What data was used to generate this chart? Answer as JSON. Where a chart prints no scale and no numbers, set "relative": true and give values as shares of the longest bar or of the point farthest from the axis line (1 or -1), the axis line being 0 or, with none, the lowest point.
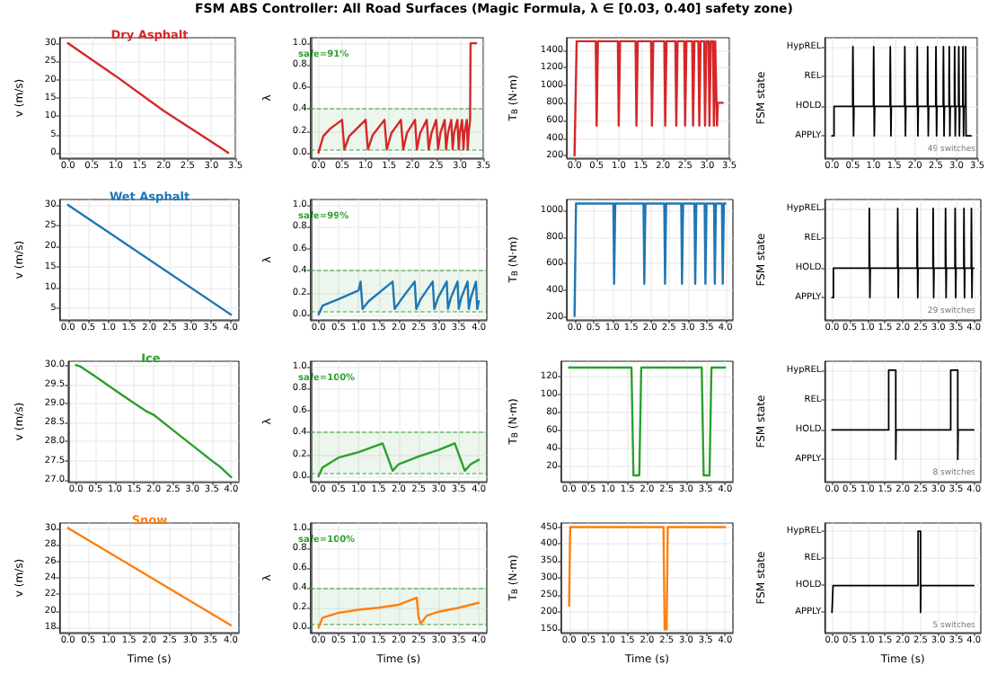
{
  "chart_data": [
    {
      "type": "line",
      "title": "FSM ABS Controller: All Road Surfaces (Magic Formula, λ ∈ [0.03, 0.40] safety zone)",
      "subtitle": "Dry Asphalt",
      "ylabel": "v (m/s)",
      "grid": true,
      "xlim": [
        -0.17,
        3.5
      ],
      "xticks": [
        {
          "value": 0,
          "label": "0.0"
        },
        {
          "value": 0.5,
          "label": "0.5"
        },
        {
          "value": 1,
          "label": "1.0"
        },
        {
          "value": 1.5,
          "label": "1.5"
        },
        {
          "value": 2,
          "label": "2.0"
        },
        {
          "value": 2.5,
          "label": "2.5"
        },
        {
          "value": 3,
          "label": "3.0"
        },
        {
          "value": 3.5,
          "label": "3.5"
        }
      ],
      "ylim": [
        -1.5,
        31.5
      ],
      "yticks": [
        0,
        5,
        10,
        15,
        20,
        25,
        30
      ],
      "x": [
        0,
        1,
        2,
        3,
        3.35
      ],
      "series": [
        {
          "color": "#d62728",
          "values": [
            30,
            21,
            11.5,
            3,
            0
          ]
        }
      ]
    },
    {
      "type": "line",
      "ylabel": "λ",
      "grid": true,
      "xlim": [
        -0.17,
        3.5
      ],
      "xticks": [
        {
          "value": 0,
          "label": "0.0"
        },
        {
          "value": 0.5,
          "label": "0.5"
        },
        {
          "value": 1,
          "label": "1.0"
        },
        {
          "value": 1.5,
          "label": "1.5"
        },
        {
          "value": 2,
          "label": "2.0"
        },
        {
          "value": 2.5,
          "label": "2.5"
        },
        {
          "value": 3,
          "label": "3.0"
        },
        {
          "value": 3.5,
          "label": "3.5"
        }
      ],
      "ylim": [
        -0.05,
        1.05
      ],
      "yticks": [
        {
          "value": 0,
          "label": "0.0"
        },
        {
          "value": 0.2,
          "label": "0.2"
        },
        {
          "value": 0.4,
          "label": "0.4"
        },
        {
          "value": 0.6,
          "label": "0.6"
        },
        {
          "value": 0.8,
          "label": "0.8"
        },
        {
          "value": 1,
          "label": "1.0"
        }
      ],
      "bands": [
        {
          "axis": "y",
          "from": 0.03,
          "to": 0.4,
          "color": "#2ca02c"
        }
      ],
      "ref_lines": [
        {
          "axis": "y",
          "value": 0.03,
          "color": "#2ca02c",
          "line_style": "dashed"
        },
        {
          "axis": "y",
          "value": 0.4,
          "color": "#2ca02c",
          "line_style": "dashed"
        }
      ],
      "annotations": [
        "safe=91%"
      ],
      "x": [
        0,
        0.1,
        0.25,
        0.5,
        0.55,
        0.65,
        1.0,
        1.05,
        1.15,
        1.4,
        1.45,
        1.55,
        1.75,
        1.8,
        1.88,
        2.05,
        2.09,
        2.16,
        2.3,
        2.34,
        2.4,
        2.5,
        2.54,
        2.59,
        2.68,
        2.71,
        2.75,
        2.82,
        2.85,
        2.88,
        2.95,
        2.98,
        3.0,
        3.05,
        3.08,
        3.1,
        3.15,
        3.17,
        3.19,
        3.22,
        3.23,
        3.35
      ],
      "series": [
        {
          "color": "#d62728",
          "values": [
            0,
            0.15,
            0.22,
            0.3,
            0.03,
            0.15,
            0.3,
            0.03,
            0.16,
            0.3,
            0.03,
            0.18,
            0.3,
            0.03,
            0.18,
            0.3,
            0.03,
            0.18,
            0.3,
            0.03,
            0.18,
            0.3,
            0.03,
            0.18,
            0.3,
            0.03,
            0.18,
            0.3,
            0.03,
            0.18,
            0.3,
            0.03,
            0.18,
            0.3,
            0.03,
            0.18,
            0.3,
            0.03,
            0.18,
            0.3,
            1.0,
            1.0
          ]
        }
      ]
    },
    {
      "type": "line",
      "ylabel": "T$_{B}$ (N·m)",
      "grid": true,
      "xlim": [
        -0.17,
        3.5
      ],
      "xticks": [
        {
          "value": 0,
          "label": "0.0"
        },
        {
          "value": 0.5,
          "label": "0.5"
        },
        {
          "value": 1,
          "label": "1.0"
        },
        {
          "value": 1.5,
          "label": "1.5"
        },
        {
          "value": 2,
          "label": "2.0"
        },
        {
          "value": 2.5,
          "label": "2.5"
        },
        {
          "value": 3,
          "label": "3.0"
        },
        {
          "value": 3.5,
          "label": "3.5"
        }
      ],
      "ylim": [
        170,
        1540
      ],
      "yticks": [
        200,
        400,
        600,
        800,
        1000,
        1200,
        1400
      ],
      "x": [
        0,
        0.05,
        0.48,
        0.5,
        0.53,
        0.98,
        1.0,
        1.03,
        1.38,
        1.4,
        1.43,
        1.73,
        1.75,
        1.78,
        2.03,
        2.05,
        2.08,
        2.28,
        2.3,
        2.33,
        2.48,
        2.5,
        2.53,
        2.66,
        2.68,
        2.71,
        2.8,
        2.82,
        2.85,
        2.93,
        2.95,
        2.98,
        3.03,
        3.05,
        3.08,
        3.13,
        3.15,
        3.18,
        3.2,
        3.22,
        3.24,
        3.35
      ],
      "series": [
        {
          "color": "#d62728",
          "values": [
            200,
            1500,
            1500,
            540,
            1500,
            1500,
            540,
            1500,
            1500,
            540,
            1500,
            1500,
            540,
            1500,
            1500,
            540,
            1500,
            1500,
            540,
            1500,
            1500,
            540,
            1500,
            1500,
            540,
            1500,
            1500,
            540,
            1500,
            1500,
            540,
            1500,
            1500,
            540,
            1500,
            1500,
            540,
            1500,
            1500,
            540,
            800,
            800
          ]
        }
      ]
    },
    {
      "type": "step",
      "ylabel": "FSM state",
      "grid": true,
      "xlim": [
        -0.17,
        3.5
      ],
      "xticks": [
        {
          "value": 0,
          "label": "0.0"
        },
        {
          "value": 0.5,
          "label": "0.5"
        },
        {
          "value": 1,
          "label": "1.0"
        },
        {
          "value": 1.5,
          "label": "1.5"
        },
        {
          "value": 2,
          "label": "2.0"
        },
        {
          "value": 2.5,
          "label": "2.5"
        },
        {
          "value": 3,
          "label": "3.0"
        },
        {
          "value": 3.5,
          "label": "3.5"
        }
      ],
      "relative": true,
      "y_categories": [
        "HypREL",
        "REL",
        "HOLD",
        "APPLY"
      ],
      "annotations": [
        "49 switches"
      ],
      "x": [
        0,
        0.05,
        0.5,
        0.505,
        0.52,
        0.53,
        1.0,
        1.005,
        1.02,
        1.03,
        1.4,
        1.405,
        1.42,
        1.43,
        1.75,
        1.755,
        1.77,
        1.78,
        2.05,
        2.055,
        2.07,
        2.08,
        2.3,
        2.305,
        2.32,
        2.33,
        2.5,
        2.505,
        2.52,
        2.53,
        2.68,
        2.685,
        2.7,
        2.71,
        2.82,
        2.825,
        2.84,
        2.85,
        2.95,
        2.955,
        2.97,
        2.98,
        3.05,
        3.055,
        3.07,
        3.08,
        3.15,
        3.155,
        3.17,
        3.18,
        3.22,
        3.23,
        3.35
      ],
      "series": [
        {
          "color": "#000000",
          "values": [
            0,
            0.33,
            0.67,
            1,
            0,
            0.33,
            0.67,
            1,
            0,
            0.33,
            0.67,
            1,
            0,
            0.33,
            0.67,
            1,
            0,
            0.33,
            0.67,
            1,
            0,
            0.33,
            0.67,
            1,
            0,
            0.33,
            0.67,
            1,
            0,
            0.33,
            0.67,
            1,
            0,
            0.33,
            0.67,
            1,
            0,
            0.33,
            0.67,
            1,
            0,
            0.33,
            0.67,
            1,
            0,
            0.33,
            0.67,
            1,
            0,
            0.33,
            1,
            0,
            0
          ]
        }
      ]
    },
    {
      "type": "line",
      "title": "Wet Asphalt",
      "ylabel": "v (m/s)",
      "grid": true,
      "xlim": [
        -0.2,
        4.2
      ],
      "xticks": [
        {
          "value": 0,
          "label": "0.0"
        },
        {
          "value": 0.5,
          "label": "0.5"
        },
        {
          "value": 1,
          "label": "1.0"
        },
        {
          "value": 1.5,
          "label": "1.5"
        },
        {
          "value": 2,
          "label": "2.0"
        },
        {
          "value": 2.5,
          "label": "2.5"
        },
        {
          "value": 3,
          "label": "3.0"
        },
        {
          "value": 3.5,
          "label": "3.5"
        },
        {
          "value": 4,
          "label": "4.0"
        }
      ],
      "ylim": [
        2.2,
        31.3
      ],
      "yticks": [
        5,
        10,
        15,
        20,
        25,
        30
      ],
      "x": [
        0,
        4
      ],
      "series": [
        {
          "color": "#1f77b4",
          "values": [
            30,
            3.5
          ]
        }
      ]
    },
    {
      "type": "line",
      "ylabel": "λ",
      "grid": true,
      "xlim": [
        -0.2,
        4.2
      ],
      "xticks": [
        {
          "value": 0,
          "label": "0.0"
        },
        {
          "value": 0.5,
          "label": "0.5"
        },
        {
          "value": 1,
          "label": "1.0"
        },
        {
          "value": 1.5,
          "label": "1.5"
        },
        {
          "value": 2,
          "label": "2.0"
        },
        {
          "value": 2.5,
          "label": "2.5"
        },
        {
          "value": 3,
          "label": "3.0"
        },
        {
          "value": 3.5,
          "label": "3.5"
        },
        {
          "value": 4,
          "label": "4.0"
        }
      ],
      "ylim": [
        -0.05,
        1.05
      ],
      "yticks": [
        {
          "value": 0,
          "label": "0.0"
        },
        {
          "value": 0.2,
          "label": "0.2"
        },
        {
          "value": 0.4,
          "label": "0.4"
        },
        {
          "value": 0.6,
          "label": "0.6"
        },
        {
          "value": 0.8,
          "label": "0.8"
        },
        {
          "value": 1,
          "label": "1.0"
        }
      ],
      "bands": [
        {
          "axis": "y",
          "from": 0.03,
          "to": 0.4,
          "color": "#2ca02c"
        }
      ],
      "ref_lines": [
        {
          "axis": "y",
          "value": 0.03,
          "color": "#2ca02c",
          "line_style": "dashed"
        },
        {
          "axis": "y",
          "value": 0.4,
          "color": "#2ca02c",
          "line_style": "dashed"
        }
      ],
      "annotations": [
        "safe=99%"
      ],
      "x": [
        0,
        0.1,
        0.5,
        1.0,
        1.05,
        1.1,
        1.25,
        1.85,
        1.9,
        2.05,
        2.4,
        2.44,
        2.55,
        2.85,
        2.89,
        2.98,
        3.2,
        3.23,
        3.3,
        3.47,
        3.5,
        3.56,
        3.72,
        3.75,
        3.8,
        3.93,
        3.96,
        4.0
      ],
      "series": [
        {
          "color": "#1f77b4",
          "values": [
            0,
            0.08,
            0.14,
            0.22,
            0.3,
            0.05,
            0.12,
            0.3,
            0.05,
            0.13,
            0.3,
            0.05,
            0.14,
            0.3,
            0.05,
            0.15,
            0.3,
            0.05,
            0.15,
            0.3,
            0.05,
            0.15,
            0.3,
            0.05,
            0.15,
            0.3,
            0.05,
            0.12
          ]
        }
      ]
    },
    {
      "type": "line",
      "ylabel": "T$_{B}$ (N·m)",
      "grid": true,
      "xlim": [
        -0.2,
        4.2
      ],
      "xticks": [
        {
          "value": 0,
          "label": "0.0"
        },
        {
          "value": 0.5,
          "label": "0.5"
        },
        {
          "value": 1,
          "label": "1.0"
        },
        {
          "value": 1.5,
          "label": "1.5"
        },
        {
          "value": 2,
          "label": "2.0"
        },
        {
          "value": 2.5,
          "label": "2.5"
        },
        {
          "value": 3,
          "label": "3.0"
        },
        {
          "value": 3.5,
          "label": "3.5"
        },
        {
          "value": 4,
          "label": "4.0"
        }
      ],
      "ylim": [
        180,
        1080
      ],
      "yticks": [
        200,
        400,
        600,
        800,
        1000
      ],
      "x": [
        0,
        0.04,
        1.03,
        1.05,
        1.08,
        1.83,
        1.85,
        1.88,
        2.38,
        2.4,
        2.43,
        2.83,
        2.85,
        2.88,
        3.18,
        3.2,
        3.23,
        3.45,
        3.47,
        3.5,
        3.7,
        3.72,
        3.75,
        3.91,
        3.93,
        3.96,
        4.0
      ],
      "series": [
        {
          "color": "#1f77b4",
          "values": [
            210,
            1050,
            1050,
            450,
            1050,
            1050,
            450,
            1050,
            1050,
            450,
            1050,
            1050,
            450,
            1050,
            1050,
            450,
            1050,
            1050,
            450,
            1050,
            1050,
            450,
            1050,
            1050,
            450,
            1050,
            1050
          ]
        }
      ]
    },
    {
      "type": "step",
      "ylabel": "FSM state",
      "grid": true,
      "xlim": [
        -0.2,
        4.2
      ],
      "xticks": [
        {
          "value": 0,
          "label": "0.0"
        },
        {
          "value": 0.5,
          "label": "0.5"
        },
        {
          "value": 1,
          "label": "1.0"
        },
        {
          "value": 1.5,
          "label": "1.5"
        },
        {
          "value": 2,
          "label": "2.0"
        },
        {
          "value": 2.5,
          "label": "2.5"
        },
        {
          "value": 3,
          "label": "3.0"
        },
        {
          "value": 3.5,
          "label": "3.5"
        },
        {
          "value": 4,
          "label": "4.0"
        }
      ],
      "relative": true,
      "y_categories": [
        "HypREL",
        "REL",
        "HOLD",
        "APPLY"
      ],
      "annotations": [
        "29 switches"
      ],
      "x": [
        0,
        0.04,
        1.05,
        1.055,
        1.07,
        1.08,
        1.85,
        1.855,
        1.87,
        1.88,
        2.4,
        2.405,
        2.42,
        2.43,
        2.85,
        2.855,
        2.87,
        2.88,
        3.2,
        3.205,
        3.22,
        3.23,
        3.47,
        3.475,
        3.49,
        3.5,
        3.72,
        3.725,
        3.74,
        3.75,
        3.93,
        3.935,
        3.95,
        3.96,
        4.0
      ],
      "series": [
        {
          "color": "#000000",
          "values": [
            0,
            0.33,
            0.67,
            1,
            0,
            0.33,
            0.67,
            1,
            0,
            0.33,
            0.67,
            1,
            0,
            0.33,
            0.67,
            1,
            0,
            0.33,
            0.67,
            1,
            0,
            0.33,
            0.67,
            1,
            0,
            0.33,
            0.67,
            1,
            0,
            0.33,
            0.67,
            1,
            0,
            0.33,
            0.33
          ]
        }
      ]
    },
    {
      "type": "line",
      "title": "Ice",
      "ylabel": "v (m/s)",
      "grid": true,
      "xlim": [
        -0.2,
        4.2
      ],
      "xticks": [
        {
          "value": 0,
          "label": "0.0"
        },
        {
          "value": 0.5,
          "label": "0.5"
        },
        {
          "value": 1,
          "label": "1.0"
        },
        {
          "value": 1.5,
          "label": "1.5"
        },
        {
          "value": 2,
          "label": "2.0"
        },
        {
          "value": 2.5,
          "label": "2.5"
        },
        {
          "value": 3,
          "label": "3.0"
        },
        {
          "value": 3.5,
          "label": "3.5"
        },
        {
          "value": 4,
          "label": "4.0"
        }
      ],
      "ylim": [
        26.95,
        30.1
      ],
      "yticks": [
        {
          "value": 27,
          "label": "27.0"
        },
        {
          "value": 27.5,
          "label": "27.5"
        },
        {
          "value": 28,
          "label": "28.0"
        },
        {
          "value": 28.5,
          "label": "28.5"
        },
        {
          "value": 29,
          "label": "29.0"
        },
        {
          "value": 29.5,
          "label": "29.5"
        },
        {
          "value": 30,
          "label": "30.0"
        }
      ],
      "x": [
        0,
        0.1,
        0.5,
        1.0,
        1.5,
        1.8,
        2.0,
        2.5,
        3.0,
        3.5,
        3.7,
        4.0
      ],
      "series": [
        {
          "color": "#2ca02c",
          "values": [
            30,
            29.97,
            29.7,
            29.35,
            29.0,
            28.8,
            28.7,
            28.3,
            27.9,
            27.5,
            27.35,
            27.07
          ]
        }
      ]
    },
    {
      "type": "line",
      "ylabel": "λ",
      "grid": true,
      "xlim": [
        -0.2,
        4.2
      ],
      "xticks": [
        {
          "value": 0,
          "label": "0.0"
        },
        {
          "value": 0.5,
          "label": "0.5"
        },
        {
          "value": 1,
          "label": "1.0"
        },
        {
          "value": 1.5,
          "label": "1.5"
        },
        {
          "value": 2,
          "label": "2.0"
        },
        {
          "value": 2.5,
          "label": "2.5"
        },
        {
          "value": 3,
          "label": "3.0"
        },
        {
          "value": 3.5,
          "label": "3.5"
        },
        {
          "value": 4,
          "label": "4.0"
        }
      ],
      "ylim": [
        -0.05,
        1.05
      ],
      "yticks": [
        {
          "value": 0,
          "label": "0.0"
        },
        {
          "value": 0.2,
          "label": "0.2"
        },
        {
          "value": 0.4,
          "label": "0.4"
        },
        {
          "value": 0.6,
          "label": "0.6"
        },
        {
          "value": 0.8,
          "label": "0.8"
        },
        {
          "value": 1,
          "label": "1.0"
        }
      ],
      "bands": [
        {
          "axis": "y",
          "from": 0.03,
          "to": 0.4,
          "color": "#2ca02c"
        }
      ],
      "ref_lines": [
        {
          "axis": "y",
          "value": 0.03,
          "color": "#2ca02c",
          "line_style": "dashed"
        },
        {
          "axis": "y",
          "value": 0.4,
          "color": "#2ca02c",
          "line_style": "dashed"
        }
      ],
      "annotations": [
        "safe=100%"
      ],
      "x": [
        0,
        0.1,
        0.5,
        1.0,
        1.6,
        1.75,
        1.85,
        2.0,
        2.5,
        3.0,
        3.4,
        3.55,
        3.65,
        3.8,
        4.0
      ],
      "series": [
        {
          "color": "#2ca02c",
          "values": [
            0,
            0.08,
            0.17,
            0.22,
            0.3,
            0.15,
            0.05,
            0.11,
            0.18,
            0.24,
            0.3,
            0.15,
            0.05,
            0.11,
            0.15
          ]
        }
      ]
    },
    {
      "type": "line",
      "ylabel": "T$_{B}$ (N·m)",
      "grid": true,
      "xlim": [
        -0.2,
        4.2
      ],
      "xticks": [
        {
          "value": 0,
          "label": "0.0"
        },
        {
          "value": 0.5,
          "label": "0.5"
        },
        {
          "value": 1,
          "label": "1.0"
        },
        {
          "value": 1.5,
          "label": "1.5"
        },
        {
          "value": 2,
          "label": "2.0"
        },
        {
          "value": 2.5,
          "label": "2.5"
        },
        {
          "value": 3,
          "label": "3.0"
        },
        {
          "value": 3.5,
          "label": "3.5"
        },
        {
          "value": 4,
          "label": "4.0"
        }
      ],
      "ylim": [
        3,
        137
      ],
      "yticks": [
        20,
        40,
        60,
        80,
        100,
        120
      ],
      "x": [
        0,
        1.6,
        1.65,
        1.8,
        1.85,
        3.4,
        3.45,
        3.6,
        3.65,
        4.0
      ],
      "series": [
        {
          "color": "#2ca02c",
          "values": [
            130,
            130,
            10,
            10,
            130,
            130,
            10,
            10,
            130,
            130
          ]
        }
      ]
    },
    {
      "type": "step",
      "ylabel": "FSM state",
      "grid": true,
      "xlim": [
        -0.2,
        4.2
      ],
      "xticks": [
        {
          "value": 0,
          "label": "0.0"
        },
        {
          "value": 0.5,
          "label": "0.5"
        },
        {
          "value": 1,
          "label": "1.0"
        },
        {
          "value": 1.5,
          "label": "1.5"
        },
        {
          "value": 2,
          "label": "2.0"
        },
        {
          "value": 2.5,
          "label": "2.5"
        },
        {
          "value": 3,
          "label": "3.0"
        },
        {
          "value": 3.5,
          "label": "3.5"
        },
        {
          "value": 4,
          "label": "4.0"
        }
      ],
      "relative": true,
      "y_categories": [
        "HypREL",
        "REL",
        "HOLD",
        "APPLY"
      ],
      "annotations": [
        "8 switches"
      ],
      "x": [
        0,
        1.6,
        1.8,
        1.81,
        3.35,
        3.55,
        3.56,
        4.0
      ],
      "series": [
        {
          "color": "#000000",
          "values": [
            0.33,
            1,
            0,
            0.33,
            1,
            0,
            0.33,
            0.33
          ]
        }
      ]
    },
    {
      "type": "line",
      "title": "Snow",
      "xlabel": "Time (s)",
      "ylabel": "v (m/s)",
      "grid": true,
      "xlim": [
        -0.2,
        4.2
      ],
      "xticks": [
        {
          "value": 0,
          "label": "0.0"
        },
        {
          "value": 0.5,
          "label": "0.5"
        },
        {
          "value": 1,
          "label": "1.0"
        },
        {
          "value": 1.5,
          "label": "1.5"
        },
        {
          "value": 2,
          "label": "2.0"
        },
        {
          "value": 2.5,
          "label": "2.5"
        },
        {
          "value": 3,
          "label": "3.0"
        },
        {
          "value": 3.5,
          "label": "3.5"
        },
        {
          "value": 4,
          "label": "4.0"
        }
      ],
      "ylim": [
        17.4,
        30.6
      ],
      "yticks": [
        18,
        20,
        22,
        24,
        26,
        28,
        30
      ],
      "x": [
        0,
        4
      ],
      "series": [
        {
          "color": "#ff7f0e",
          "values": [
            30,
            18.3
          ]
        }
      ]
    },
    {
      "type": "line",
      "xlabel": "Time (s)",
      "ylabel": "λ",
      "grid": true,
      "xlim": [
        -0.2,
        4.2
      ],
      "xticks": [
        {
          "value": 0,
          "label": "0.0"
        },
        {
          "value": 0.5,
          "label": "0.5"
        },
        {
          "value": 1,
          "label": "1.0"
        },
        {
          "value": 1.5,
          "label": "1.5"
        },
        {
          "value": 2,
          "label": "2.0"
        },
        {
          "value": 2.5,
          "label": "2.5"
        },
        {
          "value": 3,
          "label": "3.0"
        },
        {
          "value": 3.5,
          "label": "3.5"
        },
        {
          "value": 4,
          "label": "4.0"
        }
      ],
      "ylim": [
        -0.05,
        1.05
      ],
      "yticks": [
        {
          "value": 0,
          "label": "0.0"
        },
        {
          "value": 0.2,
          "label": "0.2"
        },
        {
          "value": 0.4,
          "label": "0.4"
        },
        {
          "value": 0.6,
          "label": "0.6"
        },
        {
          "value": 0.8,
          "label": "0.8"
        },
        {
          "value": 1,
          "label": "1.0"
        }
      ],
      "bands": [
        {
          "axis": "y",
          "from": 0.03,
          "to": 0.4,
          "color": "#2ca02c"
        }
      ],
      "ref_lines": [
        {
          "axis": "y",
          "value": 0.03,
          "color": "#2ca02c",
          "line_style": "dashed"
        },
        {
          "axis": "y",
          "value": 0.4,
          "color": "#2ca02c",
          "line_style": "dashed"
        }
      ],
      "annotations": [
        "safe=100%"
      ],
      "x": [
        0,
        0.1,
        0.5,
        1.0,
        1.5,
        2.0,
        2.45,
        2.5,
        2.55,
        2.7,
        3.0,
        3.5,
        4.0
      ],
      "series": [
        {
          "color": "#ff7f0e",
          "values": [
            0,
            0.1,
            0.15,
            0.18,
            0.2,
            0.23,
            0.3,
            0.1,
            0.04,
            0.12,
            0.16,
            0.2,
            0.25
          ]
        }
      ]
    },
    {
      "type": "line",
      "xlabel": "Time (s)",
      "ylabel": "T$_{B}$ (N·m)",
      "grid": true,
      "xlim": [
        -0.2,
        4.2
      ],
      "xticks": [
        {
          "value": 0,
          "label": "0.0"
        },
        {
          "value": 0.5,
          "label": "0.5"
        },
        {
          "value": 1,
          "label": "1.0"
        },
        {
          "value": 1.5,
          "label": "1.5"
        },
        {
          "value": 2,
          "label": "2.0"
        },
        {
          "value": 2.5,
          "label": "2.5"
        },
        {
          "value": 3,
          "label": "3.0"
        },
        {
          "value": 3.5,
          "label": "3.5"
        },
        {
          "value": 4,
          "label": "4.0"
        }
      ],
      "ylim": [
        140,
        462
      ],
      "yticks": [
        150,
        200,
        250,
        300,
        350,
        400,
        450
      ],
      "x": [
        0,
        0.03,
        2.42,
        2.45,
        2.5,
        2.53,
        4.0
      ],
      "series": [
        {
          "color": "#ff7f0e",
          "values": [
            220,
            450,
            450,
            150,
            150,
            450,
            450
          ]
        }
      ]
    },
    {
      "type": "step",
      "xlabel": "Time (s)",
      "ylabel": "FSM state",
      "grid": true,
      "xlim": [
        -0.2,
        4.2
      ],
      "xticks": [
        {
          "value": 0,
          "label": "0.0"
        },
        {
          "value": 0.5,
          "label": "0.5"
        },
        {
          "value": 1,
          "label": "1.0"
        },
        {
          "value": 1.5,
          "label": "1.5"
        },
        {
          "value": 2,
          "label": "2.0"
        },
        {
          "value": 2.5,
          "label": "2.5"
        },
        {
          "value": 3,
          "label": "3.0"
        },
        {
          "value": 3.5,
          "label": "3.5"
        },
        {
          "value": 4,
          "label": "4.0"
        }
      ],
      "relative": true,
      "y_categories": [
        "HypREL",
        "REL",
        "HOLD",
        "APPLY"
      ],
      "annotations": [
        "5 switches"
      ],
      "x": [
        0,
        0.03,
        2.43,
        2.5,
        2.51,
        4.0
      ],
      "series": [
        {
          "color": "#000000",
          "values": [
            0,
            0.33,
            1,
            0,
            0.33,
            0.33
          ]
        }
      ]
    }
  ]
}
